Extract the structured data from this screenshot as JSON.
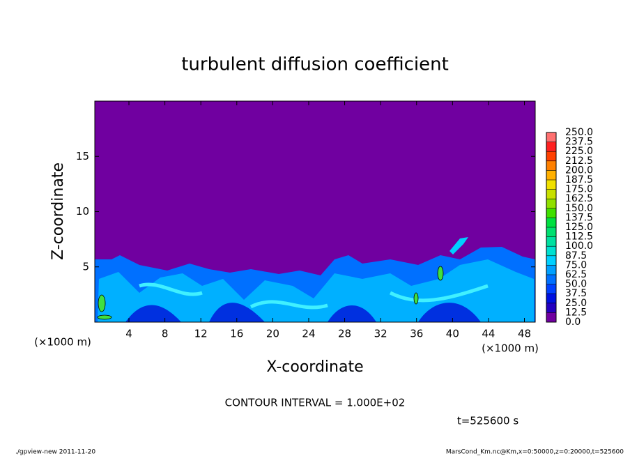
{
  "chart_data": {
    "type": "contour",
    "title": "turbulent diffusion coefficient",
    "xlabel": "X-coordinate",
    "ylabel": "Z-coordinate",
    "x_unit": "(×1000 m)",
    "x_unit_right": "(×1000 m)",
    "xlim": [
      0.2,
      49.2
    ],
    "xticks": [
      4,
      8,
      12,
      16,
      20,
      24,
      28,
      32,
      36,
      40,
      44,
      48
    ],
    "ylim": [
      0,
      20
    ],
    "yticks": [
      5,
      10,
      15
    ],
    "levels": [
      {
        "value": 0,
        "label": "0.0"
      },
      {
        "value": 12.5,
        "label": "12.5"
      },
      {
        "value": 25,
        "label": "25.0"
      },
      {
        "value": 37.5,
        "label": "37.5"
      },
      {
        "value": 50,
        "label": "50.0"
      },
      {
        "value": 62.5,
        "label": "62.5"
      },
      {
        "value": 75,
        "label": "75.0"
      },
      {
        "value": 87.5,
        "label": "87.5"
      },
      {
        "value": 100,
        "label": "100.0"
      },
      {
        "value": 112.5,
        "label": "112.5"
      },
      {
        "value": 125,
        "label": "125.0"
      },
      {
        "value": 137.5,
        "label": "137.5"
      },
      {
        "value": 150,
        "label": "150.0"
      },
      {
        "value": 162.5,
        "label": "162.5"
      },
      {
        "value": 175,
        "label": "175.0"
      },
      {
        "value": 187.5,
        "label": "187.5"
      },
      {
        "value": 200,
        "label": "200.0"
      },
      {
        "value": 212.5,
        "label": "212.5"
      },
      {
        "value": 225,
        "label": "225.0"
      },
      {
        "value": 237.5,
        "label": "237.5"
      },
      {
        "value": 250,
        "label": "250.0"
      }
    ],
    "colors": [
      "#7000a0",
      "#2400c0",
      "#0010e0",
      "#0040ff",
      "#0070ff",
      "#00a0ff",
      "#00d0ff",
      "#00e0d0",
      "#00e0a0",
      "#00e070",
      "#00e040",
      "#40e000",
      "#90e000",
      "#c8e000",
      "#f0e000",
      "#ffb000",
      "#ff8000",
      "#ff4000",
      "#ff2020",
      "#ff7070"
    ],
    "contour_interval": "CONTOUR INTERVAL = 1.000E+02",
    "time_label": "t=525600 s",
    "footer_left": "./gpview-new   2011-11-20",
    "footer_right": "MarsCond_Km.nc@Km,x=0:50000,z=0:20000,t=525600"
  }
}
